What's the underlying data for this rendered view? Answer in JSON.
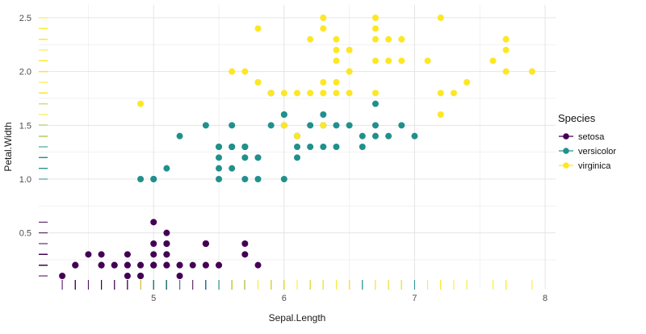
{
  "chart_data": {
    "type": "scatter",
    "title": "",
    "xlabel": "Sepal.Length",
    "ylabel": "Petal.Width",
    "legend_title": "Species",
    "legend_position": "right",
    "grid": true,
    "rug": true,
    "background_color": "#ffffff",
    "grid_color": "#e4e4e4",
    "xlim": [
      4.12,
      8.08
    ],
    "ylim": [
      -0.02,
      2.62
    ],
    "x_tick_values": [
      5,
      6,
      7,
      8
    ],
    "x_tick_labels": [
      "5",
      "6",
      "7",
      "8"
    ],
    "y_tick_values": [
      0.5,
      1.0,
      1.5,
      2.0,
      2.5
    ],
    "y_tick_labels": [
      "0.5",
      "1.0",
      "1.5",
      "2.0",
      "2.5"
    ],
    "x_minor_ticks": [
      4.5,
      5.5,
      6.5,
      7.5
    ],
    "y_minor_ticks": [
      0.25,
      0.75,
      1.25,
      1.75,
      2.25
    ],
    "series": [
      {
        "name": "setosa",
        "color": "#440154",
        "points": [
          [
            5.1,
            0.2
          ],
          [
            4.9,
            0.2
          ],
          [
            4.7,
            0.2
          ],
          [
            4.6,
            0.2
          ],
          [
            5.0,
            0.2
          ],
          [
            5.4,
            0.4
          ],
          [
            4.6,
            0.3
          ],
          [
            5.0,
            0.2
          ],
          [
            4.4,
            0.2
          ],
          [
            4.9,
            0.1
          ],
          [
            5.4,
            0.2
          ],
          [
            4.8,
            0.2
          ],
          [
            4.8,
            0.1
          ],
          [
            4.3,
            0.1
          ],
          [
            5.8,
            0.2
          ],
          [
            5.7,
            0.4
          ],
          [
            5.4,
            0.4
          ],
          [
            5.1,
            0.3
          ],
          [
            5.7,
            0.3
          ],
          [
            5.1,
            0.3
          ],
          [
            5.4,
            0.2
          ],
          [
            5.1,
            0.4
          ],
          [
            4.6,
            0.2
          ],
          [
            5.1,
            0.5
          ],
          [
            4.8,
            0.2
          ],
          [
            5.0,
            0.2
          ],
          [
            5.0,
            0.4
          ],
          [
            5.2,
            0.2
          ],
          [
            5.2,
            0.2
          ],
          [
            4.7,
            0.2
          ],
          [
            4.8,
            0.2
          ],
          [
            5.4,
            0.4
          ],
          [
            5.2,
            0.1
          ],
          [
            5.5,
            0.2
          ],
          [
            4.9,
            0.2
          ],
          [
            5.0,
            0.2
          ],
          [
            5.5,
            0.2
          ],
          [
            4.9,
            0.1
          ],
          [
            4.4,
            0.2
          ],
          [
            5.1,
            0.2
          ],
          [
            5.0,
            0.3
          ],
          [
            4.5,
            0.3
          ],
          [
            4.4,
            0.2
          ],
          [
            5.0,
            0.6
          ],
          [
            5.1,
            0.4
          ],
          [
            4.8,
            0.3
          ],
          [
            5.1,
            0.2
          ],
          [
            4.6,
            0.2
          ],
          [
            5.3,
            0.2
          ],
          [
            5.0,
            0.2
          ]
        ]
      },
      {
        "name": "versicolor",
        "color": "#21908C",
        "points": [
          [
            7.0,
            1.4
          ],
          [
            6.4,
            1.5
          ],
          [
            6.9,
            1.5
          ],
          [
            5.5,
            1.3
          ],
          [
            6.5,
            1.5
          ],
          [
            5.7,
            1.3
          ],
          [
            6.3,
            1.6
          ],
          [
            4.9,
            1.0
          ],
          [
            6.6,
            1.3
          ],
          [
            5.2,
            1.4
          ],
          [
            5.0,
            1.0
          ],
          [
            5.9,
            1.5
          ],
          [
            6.0,
            1.0
          ],
          [
            6.1,
            1.4
          ],
          [
            5.6,
            1.3
          ],
          [
            6.7,
            1.4
          ],
          [
            5.6,
            1.5
          ],
          [
            5.8,
            1.0
          ],
          [
            6.2,
            1.5
          ],
          [
            5.6,
            1.1
          ],
          [
            5.9,
            1.8
          ],
          [
            6.1,
            1.3
          ],
          [
            6.3,
            1.5
          ],
          [
            6.1,
            1.2
          ],
          [
            6.4,
            1.3
          ],
          [
            6.6,
            1.4
          ],
          [
            6.8,
            1.4
          ],
          [
            6.7,
            1.7
          ],
          [
            6.0,
            1.5
          ],
          [
            5.7,
            1.0
          ],
          [
            5.5,
            1.1
          ],
          [
            5.5,
            1.0
          ],
          [
            5.8,
            1.2
          ],
          [
            6.0,
            1.6
          ],
          [
            5.4,
            1.5
          ],
          [
            6.0,
            1.6
          ],
          [
            6.7,
            1.5
          ],
          [
            6.3,
            1.3
          ],
          [
            5.6,
            1.3
          ],
          [
            5.5,
            1.3
          ],
          [
            5.5,
            1.2
          ],
          [
            6.1,
            1.4
          ],
          [
            5.8,
            1.2
          ],
          [
            5.0,
            1.0
          ],
          [
            5.6,
            1.3
          ],
          [
            5.7,
            1.2
          ],
          [
            5.7,
            1.3
          ],
          [
            6.2,
            1.3
          ],
          [
            5.1,
            1.1
          ],
          [
            5.7,
            1.3
          ]
        ]
      },
      {
        "name": "virginica",
        "color": "#FDE725",
        "points": [
          [
            6.3,
            2.5
          ],
          [
            5.8,
            1.9
          ],
          [
            7.1,
            2.1
          ],
          [
            6.3,
            1.8
          ],
          [
            6.5,
            2.2
          ],
          [
            7.6,
            2.1
          ],
          [
            4.9,
            1.7
          ],
          [
            7.3,
            1.8
          ],
          [
            6.7,
            1.8
          ],
          [
            7.2,
            2.5
          ],
          [
            6.5,
            2.0
          ],
          [
            6.4,
            1.9
          ],
          [
            6.8,
            2.1
          ],
          [
            5.7,
            2.0
          ],
          [
            5.8,
            2.4
          ],
          [
            6.4,
            2.3
          ],
          [
            6.5,
            1.8
          ],
          [
            7.7,
            2.2
          ],
          [
            7.7,
            2.3
          ],
          [
            6.0,
            1.5
          ],
          [
            6.9,
            2.3
          ],
          [
            5.6,
            2.0
          ],
          [
            7.7,
            2.0
          ],
          [
            6.3,
            1.8
          ],
          [
            6.7,
            2.1
          ],
          [
            7.2,
            1.8
          ],
          [
            6.2,
            1.8
          ],
          [
            6.1,
            1.8
          ],
          [
            6.4,
            2.1
          ],
          [
            7.2,
            1.6
          ],
          [
            7.4,
            1.9
          ],
          [
            7.9,
            2.0
          ],
          [
            6.4,
            2.2
          ],
          [
            6.3,
            1.5
          ],
          [
            6.1,
            1.4
          ],
          [
            7.7,
            2.3
          ],
          [
            6.3,
            2.4
          ],
          [
            6.4,
            1.8
          ],
          [
            6.0,
            1.8
          ],
          [
            6.9,
            2.1
          ],
          [
            6.7,
            2.4
          ],
          [
            6.9,
            2.3
          ],
          [
            5.8,
            1.9
          ],
          [
            6.8,
            2.3
          ],
          [
            6.7,
            2.5
          ],
          [
            6.7,
            2.3
          ],
          [
            6.3,
            1.9
          ],
          [
            6.5,
            2.0
          ],
          [
            6.2,
            2.3
          ],
          [
            5.9,
            1.8
          ]
        ]
      }
    ]
  }
}
